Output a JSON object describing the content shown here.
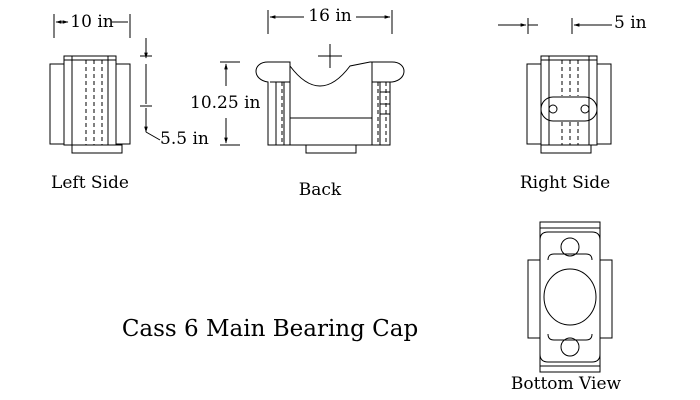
{
  "title": "Cass 6 Main Bearing Cap",
  "views": {
    "left_side": "Left Side",
    "back": "Back",
    "right_side": "Right Side",
    "bottom": "Bottom View"
  },
  "dimensions": {
    "width_left": "10 in",
    "width_back": "16 in",
    "height_back": "10.25 in",
    "lower_left": "5.5 in",
    "right_gap": "5 in"
  }
}
